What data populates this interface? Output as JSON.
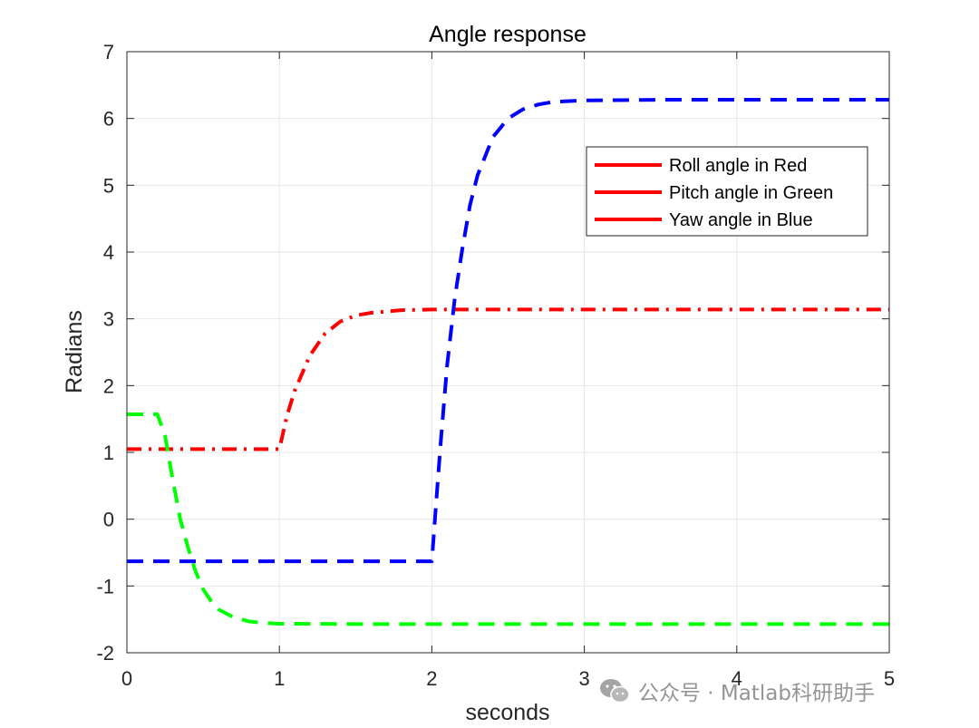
{
  "chart_data": {
    "type": "line",
    "title": "Angle response",
    "xlabel": "seconds",
    "ylabel": "Radians",
    "xlim": [
      0,
      5
    ],
    "ylim": [
      -2,
      7
    ],
    "xticks": [
      0,
      1,
      2,
      3,
      4,
      5
    ],
    "yticks": [
      -2,
      -1,
      0,
      1,
      2,
      3,
      4,
      5,
      6,
      7
    ],
    "grid": true,
    "legend_position": "top-right",
    "legend": [
      "Roll angle in Red",
      "Pitch angle in Green",
      "Yaw angle in Blue"
    ],
    "legend_line_color": "#ff0000",
    "series": [
      {
        "name": "Roll angle in Red",
        "color": "#ff0000",
        "style": "dash-dot",
        "x": [
          0,
          0.5,
          1.0,
          1.05,
          1.1,
          1.2,
          1.3,
          1.4,
          1.5,
          1.6,
          1.8,
          2.0,
          2.5,
          3.0,
          4.0,
          5.0
        ],
        "y": [
          1.05,
          1.05,
          1.05,
          1.55,
          1.92,
          2.45,
          2.78,
          2.96,
          3.05,
          3.09,
          3.13,
          3.14,
          3.14,
          3.14,
          3.14,
          3.14
        ]
      },
      {
        "name": "Pitch angle in Green",
        "color": "#00ff00",
        "style": "dashed",
        "x": [
          0,
          0.2,
          0.25,
          0.3,
          0.35,
          0.4,
          0.45,
          0.5,
          0.55,
          0.6,
          0.7,
          0.8,
          0.9,
          1.0,
          1.5,
          2.0,
          3.0,
          4.0,
          5.0
        ],
        "y": [
          1.57,
          1.57,
          1.25,
          0.6,
          0.0,
          -0.42,
          -0.78,
          -1.05,
          -1.22,
          -1.35,
          -1.47,
          -1.53,
          -1.555,
          -1.565,
          -1.57,
          -1.57,
          -1.57,
          -1.57,
          -1.57
        ]
      },
      {
        "name": "Yaw angle in Blue",
        "color": "#0000ff",
        "style": "dashed",
        "x": [
          0,
          0.5,
          1.0,
          1.5,
          2.0,
          2.03,
          2.06,
          2.1,
          2.15,
          2.2,
          2.25,
          2.3,
          2.4,
          2.5,
          2.6,
          2.7,
          2.8,
          3.0,
          3.5,
          4.0,
          5.0
        ],
        "y": [
          -0.63,
          -0.63,
          -0.63,
          -0.63,
          -0.63,
          0.3,
          1.2,
          2.3,
          3.3,
          4.05,
          4.7,
          5.15,
          5.72,
          6.0,
          6.14,
          6.21,
          6.25,
          6.27,
          6.28,
          6.28,
          6.28
        ]
      }
    ]
  },
  "watermark": {
    "text": "公众号 · Matlab科研助手",
    "icon": "wechat-icon",
    "color": "#8a8a8a"
  }
}
